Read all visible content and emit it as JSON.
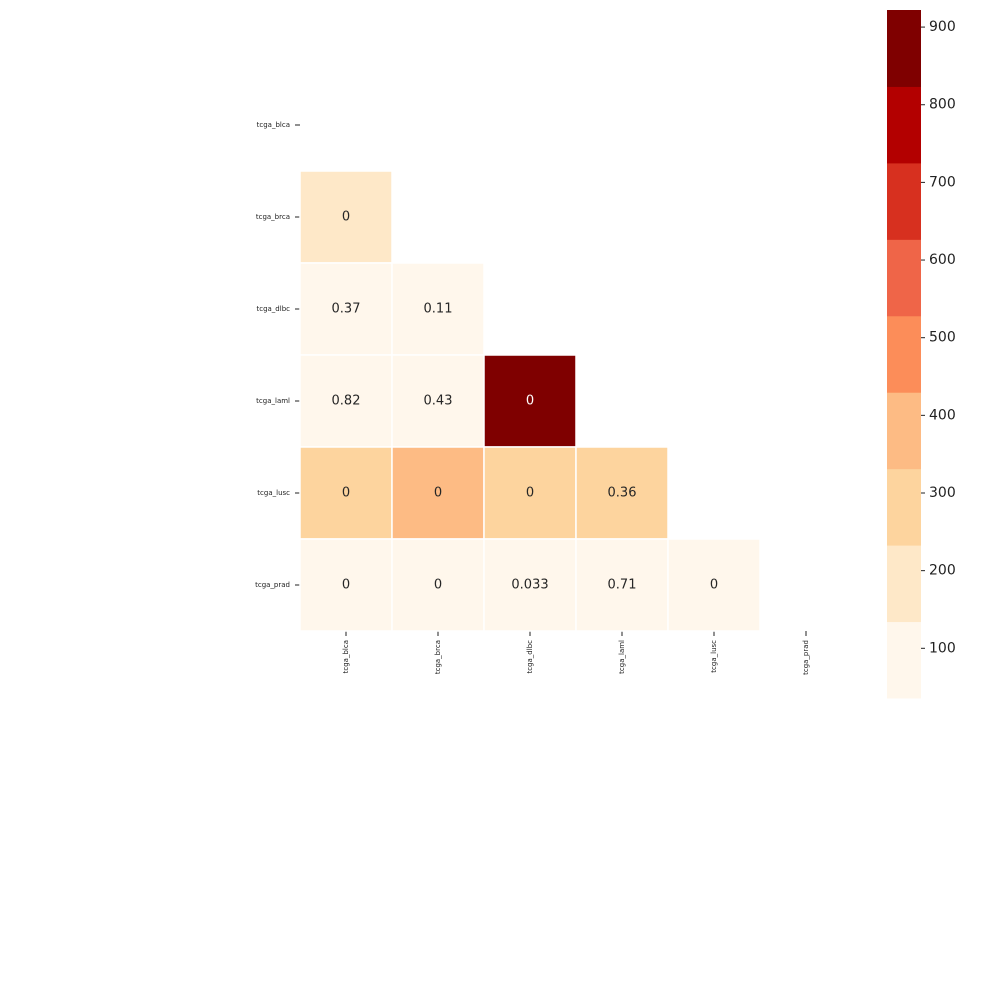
{
  "chart_data": {
    "type": "heatmap",
    "x": [
      "tcga_blca",
      "tcga_brca",
      "tcga_dlbc",
      "tcga_laml",
      "tcga_lusc",
      "tcga_prad"
    ],
    "y": [
      "tcga_blca",
      "tcga_brca",
      "tcga_dlbc",
      "tcga_laml",
      "tcga_lusc",
      "tcga_prad"
    ],
    "values": [
      [
        null,
        null,
        null,
        null,
        null,
        null
      ],
      [
        180,
        null,
        null,
        null,
        null,
        null
      ],
      [
        80,
        80,
        null,
        null,
        null,
        null
      ],
      [
        80,
        80,
        900,
        null,
        null,
        null
      ],
      [
        280,
        380,
        280,
        280,
        null,
        null
      ],
      [
        80,
        80,
        80,
        80,
        80,
        null
      ]
    ],
    "annotations": [
      [
        null,
        null,
        null,
        null,
        null,
        null
      ],
      [
        0,
        null,
        null,
        null,
        null,
        null
      ],
      [
        0.37,
        0.11,
        null,
        null,
        null,
        null
      ],
      [
        0.82,
        0.43,
        0,
        null,
        null,
        null
      ],
      [
        0,
        0,
        0,
        0.36,
        null,
        null
      ],
      [
        0,
        0,
        0.033,
        0.71,
        0,
        null
      ]
    ],
    "colors": [
      "#fff7ec",
      "#fee8c8",
      "#fdd49e",
      "#fdbb84",
      "#fc8d59",
      "#ef6548",
      "#d7301f",
      "#b30000",
      "#7f0000"
    ],
    "clim": [
      36,
      922
    ],
    "cticks": [
      100,
      200,
      300,
      400,
      500,
      600,
      700,
      800,
      900
    ]
  }
}
